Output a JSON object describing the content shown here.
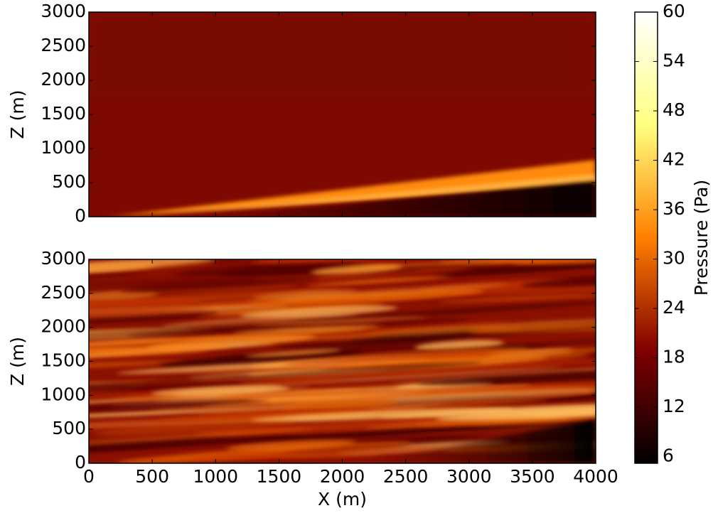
{
  "chart_data": [
    {
      "type": "heatmap",
      "ylabel": "Z (m)",
      "xlim": [
        0,
        4000
      ],
      "ylim": [
        0,
        3000
      ],
      "xticks": [
        0,
        500,
        1000,
        1500,
        2000,
        2500,
        3000,
        3500,
        4000
      ],
      "yticks": [
        0,
        500,
        1000,
        1500,
        2000,
        2500,
        3000
      ],
      "xtick_labels": false
    },
    {
      "type": "heatmap",
      "xlabel": "X (m)",
      "ylabel": "Z (m)",
      "xlim": [
        0,
        4000
      ],
      "ylim": [
        0,
        3000
      ],
      "xticks": [
        0,
        500,
        1000,
        1500,
        2000,
        2500,
        3000,
        3500,
        4000
      ],
      "yticks": [
        0,
        500,
        1000,
        1500,
        2000,
        2500,
        3000
      ],
      "xtick_labels": true
    }
  ],
  "colorbar": {
    "label": "Pressure (Pa)",
    "colormap": "afmhot",
    "lim": [
      5.2,
      60
    ],
    "ticks": [
      6,
      12,
      18,
      24,
      30,
      36,
      42,
      48,
      54,
      60
    ]
  }
}
